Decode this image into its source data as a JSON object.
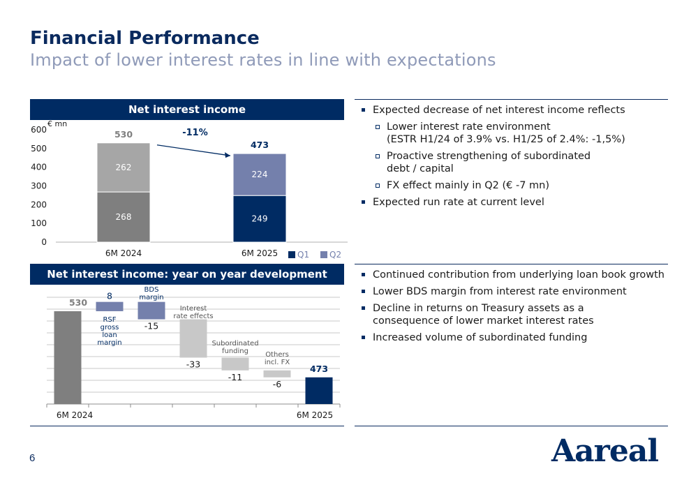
{
  "header": {
    "title": "Financial Performance",
    "subtitle": "Impact of lower interest rates in line with expectations"
  },
  "panel1": {
    "title": "Net interest income",
    "unit": "€ mn",
    "change_label": "-11%"
  },
  "panel2": {
    "title": "Net interest income: year on year development"
  },
  "bullets_top": [
    {
      "level": 1,
      "text": "Expected decrease of net interest income reflects"
    },
    {
      "level": 2,
      "text": "Lower interest rate environment\n(ESTR H1/24 of 3.9% vs. H1/25 of 2.4%: -1,5%)"
    },
    {
      "level": 2,
      "text": "Proactive strengthening of subordinated\ndebt / capital"
    },
    {
      "level": 2,
      "text": "FX effect mainly in Q2 (€ -7 mn)"
    },
    {
      "level": 1,
      "text": "Expected run rate at current level"
    }
  ],
  "bullets_bottom": [
    {
      "level": 1,
      "text": "Continued contribution from underlying loan book growth"
    },
    {
      "level": 1,
      "text": "Lower BDS margin from interest rate environment"
    },
    {
      "level": 1,
      "text": "Decline in returns on Treasury assets as a\nconsequence of lower market interest rates"
    },
    {
      "level": 1,
      "text": "Increased volume of subordinated funding"
    }
  ],
  "chart_data": [
    {
      "type": "bar",
      "stacked": true,
      "title": "Net interest income",
      "ylabel": "€ mn",
      "categories": [
        "6M 2024",
        "6M 2025"
      ],
      "series": [
        {
          "name": "Q1",
          "values": [
            268,
            249
          ],
          "color": "#002b63"
        },
        {
          "name": "Q2",
          "values": [
            262,
            224
          ],
          "color": "#7480ac"
        }
      ],
      "totals": [
        530,
        473
      ],
      "ylim": [
        0,
        600
      ],
      "yticks": [
        0,
        100,
        200,
        300,
        400,
        500,
        600
      ],
      "annotation": "-11%",
      "legend": "bottom-right",
      "colors_6M2024": {
        "Q1": "#7f7f7f",
        "Q2": "#a6a6a6"
      }
    },
    {
      "type": "bar",
      "subtype": "waterfall",
      "title": "Net interest income: year on year development",
      "steps": [
        {
          "label": "6M 2024",
          "value": 530,
          "kind": "total",
          "color": "#7f7f7f"
        },
        {
          "label": "RSF gross loan margin",
          "value": 8,
          "kind": "delta",
          "color": "#7480ac"
        },
        {
          "label": "BDS margin",
          "value": -15,
          "kind": "delta",
          "color": "#7480ac"
        },
        {
          "label": "Interest rate effects",
          "value": -33,
          "kind": "delta",
          "color": "#c8c8c8"
        },
        {
          "label": "Subordinated funding",
          "value": -11,
          "kind": "delta",
          "color": "#c8c8c8"
        },
        {
          "label": "Others incl. FX",
          "value": -6,
          "kind": "delta",
          "color": "#c8c8c8"
        },
        {
          "label": "6M 2025",
          "value": 473,
          "kind": "total",
          "color": "#002b63"
        }
      ],
      "value_labels": [
        "530",
        "8",
        "-15",
        "-33",
        "-11",
        "-6",
        "473"
      ],
      "axis_labels": [
        "6M 2024",
        "6M 2025"
      ],
      "step_labels": [
        [
          "RSF",
          "gross",
          "loan",
          "margin"
        ],
        [
          "BDS",
          "margin"
        ],
        [
          "Interest",
          "rate effects"
        ],
        [
          "Subordinated",
          "funding"
        ],
        [
          "Others",
          "incl. FX"
        ]
      ]
    }
  ],
  "footer": {
    "page_number": "6",
    "logo_text": "Aareal"
  }
}
